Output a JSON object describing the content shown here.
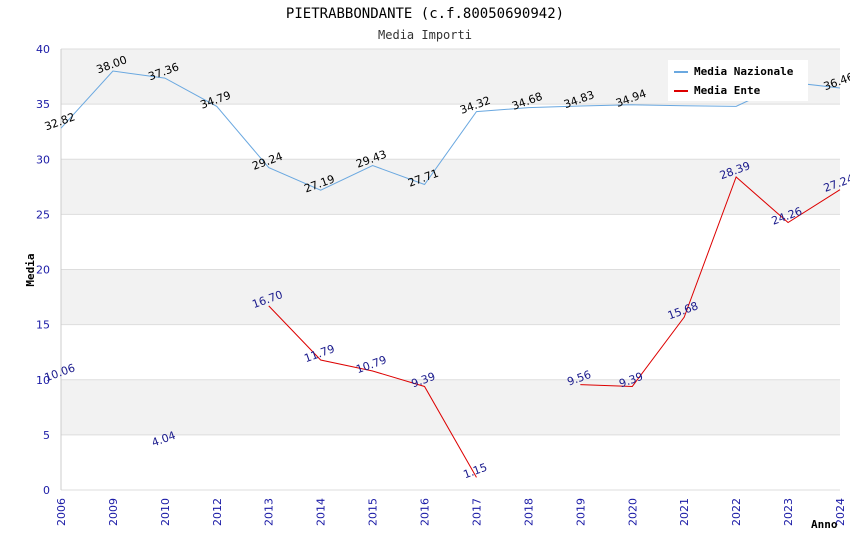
{
  "chart_data": {
    "type": "line",
    "title": "PIETRABBONDANTE (c.f.80050690942)",
    "subtitle": "Media Importi",
    "xlabel": "Anno",
    "ylabel": "Media",
    "ylim": [
      0,
      40
    ],
    "yticks": [
      0,
      5,
      10,
      15,
      20,
      25,
      30,
      35,
      40
    ],
    "categories": [
      "2006",
      "2009",
      "2010",
      "2012",
      "2013",
      "2014",
      "2015",
      "2016",
      "2017",
      "2018",
      "2019",
      "2020",
      "2021",
      "2022",
      "2023",
      "2024"
    ],
    "legend_position": "top-right",
    "grid": true,
    "series": [
      {
        "name": "Media Nazionale",
        "color": "#6aa8e0",
        "values": [
          32.82,
          38.0,
          37.36,
          34.79,
          29.24,
          27.19,
          29.43,
          27.71,
          34.32,
          34.68,
          34.83,
          34.94,
          34.85,
          34.8,
          37.0,
          36.46
        ],
        "labels": [
          "32.82",
          "38.00",
          "37.36",
          "34.79",
          "29.24",
          "27.19",
          "29.43",
          "27.71",
          "34.32",
          "34.68",
          "34.83",
          "34.94",
          "",
          "",
          "",
          "36.46"
        ]
      },
      {
        "name": "Media Ente",
        "color": "#dd0000",
        "values": [
          10.06,
          null,
          4.04,
          null,
          16.7,
          11.79,
          10.79,
          9.39,
          1.15,
          null,
          9.56,
          9.39,
          15.68,
          28.39,
          24.26,
          27.24
        ],
        "labels": [
          "10.06",
          "",
          "4.04",
          "",
          "16.70",
          "11.79",
          "10.79",
          "9.39",
          "1.15",
          "",
          "9.56",
          "9.39",
          "15.68",
          "28.39",
          "24.26",
          "27.24"
        ]
      }
    ]
  },
  "colors": {
    "band": "#f2f2f2",
    "grid": "#dddddd",
    "tick_text": "#1a1aa6"
  }
}
